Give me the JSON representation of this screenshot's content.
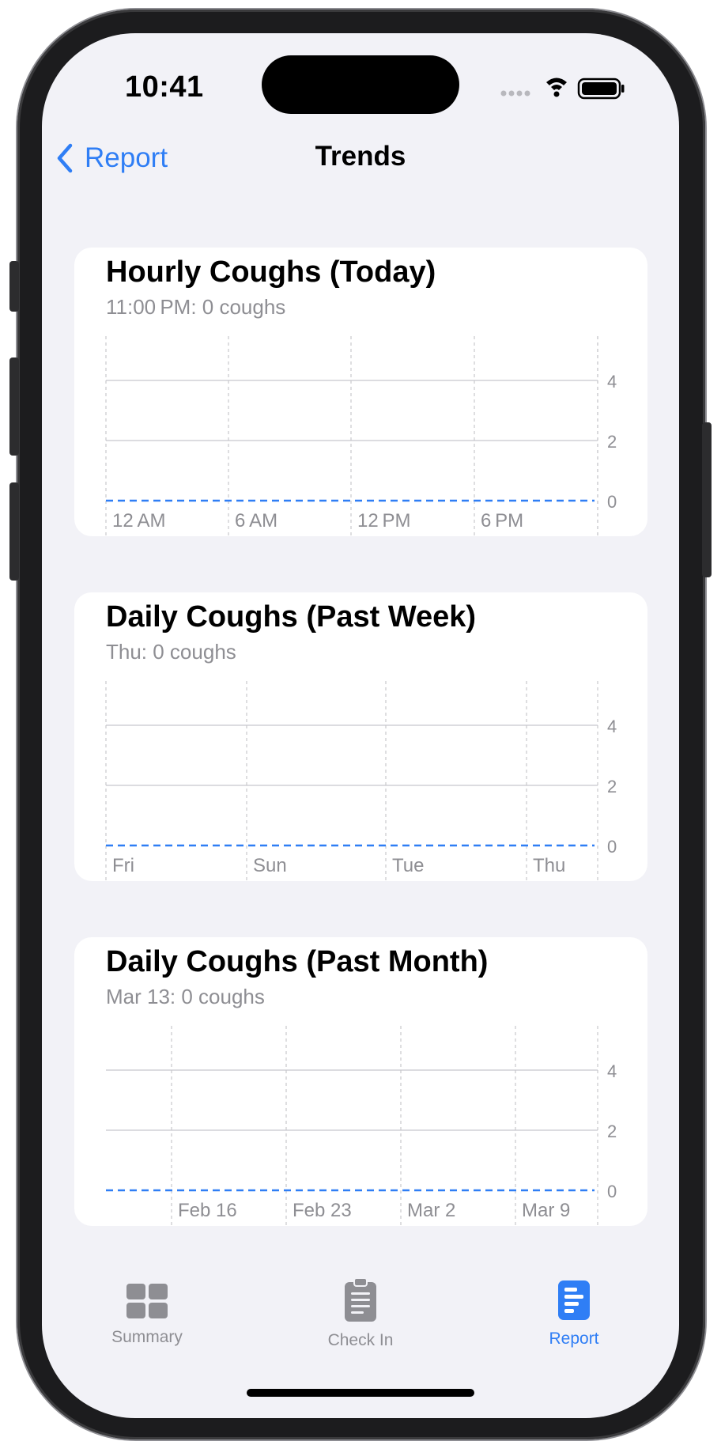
{
  "status_bar": {
    "time": "10:41"
  },
  "nav": {
    "back_label": "Report",
    "title": "Trends"
  },
  "colors": {
    "accent": "#2f7ef5",
    "tab_inactive": "#8e8e93",
    "background": "#f2f2f7",
    "card": "#ffffff"
  },
  "cards": [
    {
      "title": "Hourly Coughs (Today)",
      "subtitle": "11:00 PM: 0 coughs",
      "chart_data": {
        "type": "line",
        "x_tick_labels": [
          "12 AM",
          "6 AM",
          "12 PM",
          "6 PM"
        ],
        "y_tick_labels": [
          "4",
          "2",
          "0"
        ],
        "ylim": [
          0,
          5
        ],
        "series": [
          {
            "values": [
              0,
              0,
              0,
              0,
              0
            ]
          }
        ],
        "line_style": "dashed"
      }
    },
    {
      "title": "Daily Coughs (Past Week)",
      "subtitle": "Thu: 0 coughs",
      "chart_data": {
        "type": "line",
        "x_tick_labels": [
          "Fri",
          "Sun",
          "Tue",
          "Thu"
        ],
        "y_tick_labels": [
          "4",
          "2",
          "0"
        ],
        "ylim": [
          0,
          5
        ],
        "series": [
          {
            "values": [
              0,
              0,
              0,
              0,
              0,
              0,
              0
            ]
          }
        ],
        "line_style": "dashed"
      }
    },
    {
      "title": "Daily Coughs (Past Month)",
      "subtitle": "Mar 13: 0 coughs",
      "chart_data": {
        "type": "line",
        "x_tick_labels": [
          "Feb 16",
          "Feb 23",
          "Mar 2",
          "Mar 9"
        ],
        "y_tick_labels": [
          "4",
          "2",
          "0"
        ],
        "ylim": [
          0,
          5
        ],
        "series": [
          {
            "values": [
              0,
              0,
              0,
              0,
              0
            ]
          }
        ],
        "line_style": "dashed"
      }
    }
  ],
  "tabs": [
    {
      "label": "Summary",
      "icon": "grid-icon",
      "active": false
    },
    {
      "label": "Check In",
      "icon": "clipboard-icon",
      "active": false
    },
    {
      "label": "Report",
      "icon": "report-icon",
      "active": true
    }
  ]
}
